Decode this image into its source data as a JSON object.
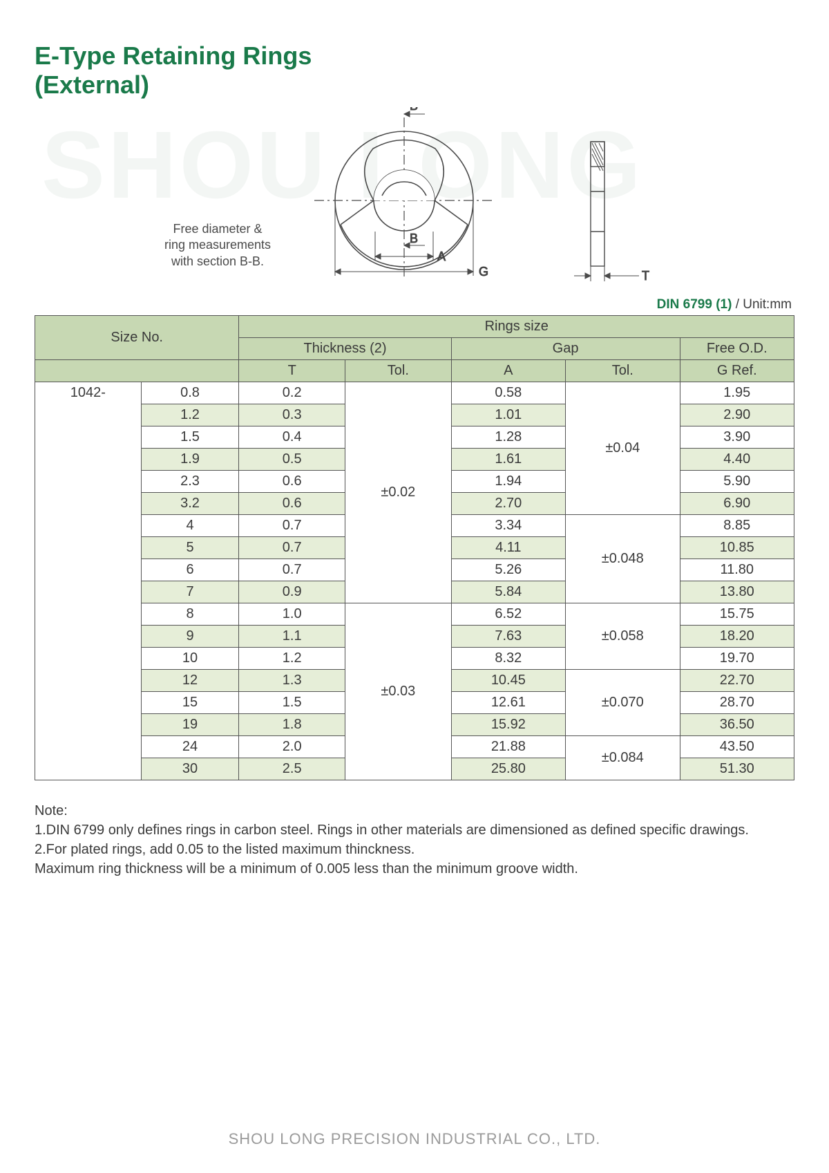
{
  "watermark": "SHOU LONG",
  "title_line1": "E-Type Retaining Rings",
  "title_line2": "(External)",
  "diagram": {
    "caption_l1": "Free diameter &",
    "caption_l2": "ring measurements",
    "caption_l3": "with section B-B.",
    "label_B": "B",
    "label_A": "A",
    "label_G": "G",
    "label_T": "T"
  },
  "standard": {
    "label": "DIN 6799 (1)",
    "unit": " / Unit:mm"
  },
  "table": {
    "colors": {
      "header_bg": "#c7d8b3",
      "alt_bg": "#e6eed8",
      "border": "#555555"
    },
    "headers": {
      "size_no": "Size No.",
      "rings_size": "Rings size",
      "thickness": "Thickness (2)",
      "gap": "Gap",
      "free_od": "Free O.D.",
      "T": "T",
      "Tol": "Tol.",
      "A": "A",
      "G": "G Ref."
    },
    "size_prefix": "1042-",
    "rows": [
      {
        "size": "0.8",
        "T": "0.2",
        "A": "0.58",
        "G": "1.95"
      },
      {
        "size": "1.2",
        "T": "0.3",
        "A": "1.01",
        "G": "2.90"
      },
      {
        "size": "1.5",
        "T": "0.4",
        "A": "1.28",
        "G": "3.90"
      },
      {
        "size": "1.9",
        "T": "0.5",
        "A": "1.61",
        "G": "4.40"
      },
      {
        "size": "2.3",
        "T": "0.6",
        "A": "1.94",
        "G": "5.90"
      },
      {
        "size": "3.2",
        "T": "0.6",
        "A": "2.70",
        "G": "6.90"
      },
      {
        "size": "4",
        "T": "0.7",
        "A": "3.34",
        "G": "8.85"
      },
      {
        "size": "5",
        "T": "0.7",
        "A": "4.11",
        "G": "10.85"
      },
      {
        "size": "6",
        "T": "0.7",
        "A": "5.26",
        "G": "11.80"
      },
      {
        "size": "7",
        "T": "0.9",
        "A": "5.84",
        "G": "13.80"
      },
      {
        "size": "8",
        "T": "1.0",
        "A": "6.52",
        "G": "15.75"
      },
      {
        "size": "9",
        "T": "1.1",
        "A": "7.63",
        "G": "18.20"
      },
      {
        "size": "10",
        "T": "1.2",
        "A": "8.32",
        "G": "19.70"
      },
      {
        "size": "12",
        "T": "1.3",
        "A": "10.45",
        "G": "22.70"
      },
      {
        "size": "15",
        "T": "1.5",
        "A": "12.61",
        "G": "28.70"
      },
      {
        "size": "19",
        "T": "1.8",
        "A": "15.92",
        "G": "36.50"
      },
      {
        "size": "24",
        "T": "2.0",
        "A": "21.88",
        "G": "43.50"
      },
      {
        "size": "30",
        "T": "2.5",
        "A": "25.80",
        "G": "51.30"
      }
    ],
    "t_tol_groups": [
      {
        "value": "±0.02",
        "span": 10
      },
      {
        "value": "±0.03",
        "span": 8
      }
    ],
    "a_tol_groups": [
      {
        "value": "±0.04",
        "span": 6
      },
      {
        "value": "±0.048",
        "span": 4
      },
      {
        "value": "±0.058",
        "span": 3
      },
      {
        "value": "±0.070",
        "span": 3
      },
      {
        "value": "±0.084",
        "span": 2
      }
    ]
  },
  "notes": {
    "heading": "Note:",
    "n1": "1.DIN 6799 only defines rings in carbon steel. Rings in other materials are dimensioned as defined specific drawings.",
    "n2": "2.For plated rings, add 0.05 to the listed maximum thinckness.",
    "n3": "Maximum ring thickness will be a minimum of 0.005 less than the minimum groove width."
  },
  "footer": "SHOU LONG PRECISION INDUSTRIAL CO., LTD."
}
